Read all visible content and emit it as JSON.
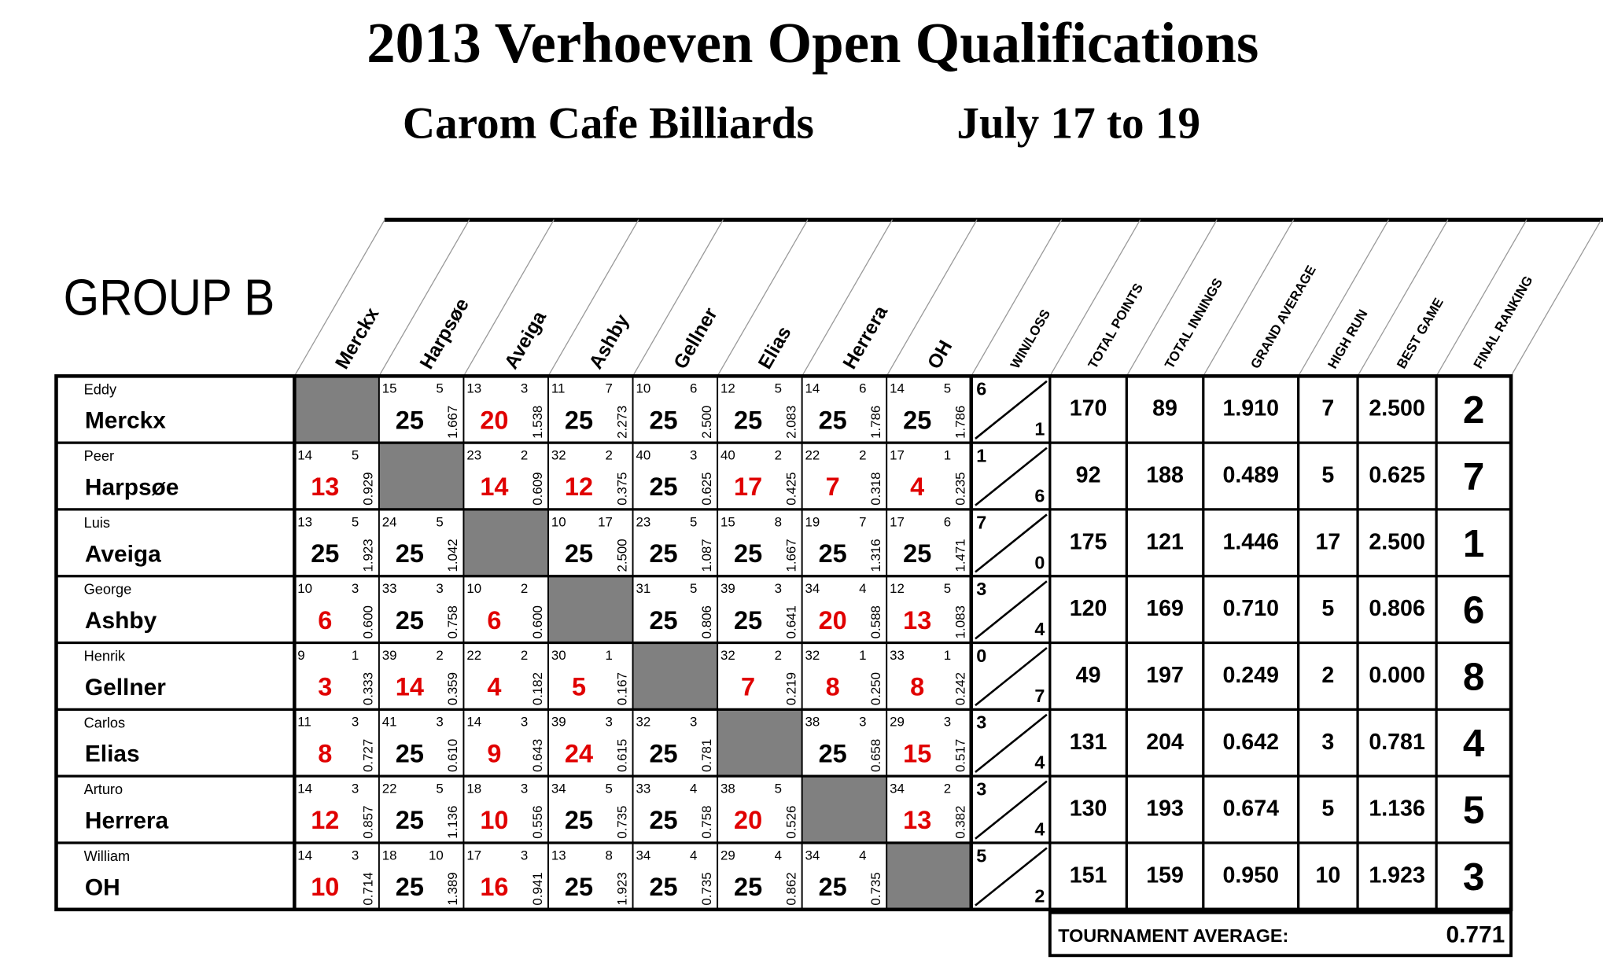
{
  "header": {
    "title": "2013 Verhoeven Open Qualifications",
    "venue": "Carom Cafe Billiards",
    "dates": "July 17 to 19"
  },
  "group": "GROUP B",
  "table": {
    "player_columns": [
      "Merckx",
      "Harpsøe",
      "Aveiga",
      "Ashby",
      "Gellner",
      "Elias",
      "Herrera",
      "OH"
    ],
    "stat_columns": [
      "WIN/LOSS",
      "TOTAL POINTS",
      "TOTAL INNINGS",
      "GRAND AVERAGE",
      "HIGH RUN",
      "BEST GAME",
      "FINAL RANKING"
    ],
    "rows": [
      {
        "first_name": "Eddy",
        "last_name": "Merckx",
        "games": [
          null,
          {
            "innings": "15",
            "high_run": "5",
            "score": "25",
            "average": "1.667"
          },
          {
            "innings": "13",
            "high_run": "3",
            "score": "20",
            "average": "1.538"
          },
          {
            "innings": "11",
            "high_run": "7",
            "score": "25",
            "average": "2.273"
          },
          {
            "innings": "10",
            "high_run": "6",
            "score": "25",
            "average": "2.500"
          },
          {
            "innings": "12",
            "high_run": "5",
            "score": "25",
            "average": "2.083"
          },
          {
            "innings": "14",
            "high_run": "6",
            "score": "25",
            "average": "1.786"
          },
          {
            "innings": "14",
            "high_run": "5",
            "score": "25",
            "average": "1.786"
          }
        ],
        "wins": "6",
        "losses": "1",
        "total_points": "170",
        "total_innings": "89",
        "grand_average": "1.910",
        "high_run": "7",
        "best_game": "2.500",
        "final_ranking": "2"
      },
      {
        "first_name": "Peer",
        "last_name": "Harpsøe",
        "games": [
          {
            "innings": "14",
            "high_run": "5",
            "score": "13",
            "average": "0.929"
          },
          null,
          {
            "innings": "23",
            "high_run": "2",
            "score": "14",
            "average": "0.609"
          },
          {
            "innings": "32",
            "high_run": "2",
            "score": "12",
            "average": "0.375"
          },
          {
            "innings": "40",
            "high_run": "3",
            "score": "25",
            "average": "0.625"
          },
          {
            "innings": "40",
            "high_run": "2",
            "score": "17",
            "average": "0.425"
          },
          {
            "innings": "22",
            "high_run": "2",
            "score": "7",
            "average": "0.318"
          },
          {
            "innings": "17",
            "high_run": "1",
            "score": "4",
            "average": "0.235"
          }
        ],
        "wins": "1",
        "losses": "6",
        "total_points": "92",
        "total_innings": "188",
        "grand_average": "0.489",
        "high_run": "5",
        "best_game": "0.625",
        "final_ranking": "7"
      },
      {
        "first_name": "Luis",
        "last_name": "Aveiga",
        "games": [
          {
            "innings": "13",
            "high_run": "5",
            "score": "25",
            "average": "1.923"
          },
          {
            "innings": "24",
            "high_run": "5",
            "score": "25",
            "average": "1.042"
          },
          null,
          {
            "innings": "10",
            "high_run": "17",
            "score": "25",
            "average": "2.500"
          },
          {
            "innings": "23",
            "high_run": "5",
            "score": "25",
            "average": "1.087"
          },
          {
            "innings": "15",
            "high_run": "8",
            "score": "25",
            "average": "1.667"
          },
          {
            "innings": "19",
            "high_run": "7",
            "score": "25",
            "average": "1.316"
          },
          {
            "innings": "17",
            "high_run": "6",
            "score": "25",
            "average": "1.471"
          }
        ],
        "wins": "7",
        "losses": "0",
        "total_points": "175",
        "total_innings": "121",
        "grand_average": "1.446",
        "high_run": "17",
        "best_game": "2.500",
        "final_ranking": "1"
      },
      {
        "first_name": "George",
        "last_name": "Ashby",
        "games": [
          {
            "innings": "10",
            "high_run": "3",
            "score": "6",
            "average": "0.600"
          },
          {
            "innings": "33",
            "high_run": "3",
            "score": "25",
            "average": "0.758"
          },
          {
            "innings": "10",
            "high_run": "2",
            "score": "6",
            "average": "0.600"
          },
          null,
          {
            "innings": "31",
            "high_run": "5",
            "score": "25",
            "average": "0.806"
          },
          {
            "innings": "39",
            "high_run": "3",
            "score": "25",
            "average": "0.641"
          },
          {
            "innings": "34",
            "high_run": "4",
            "score": "20",
            "average": "0.588"
          },
          {
            "innings": "12",
            "high_run": "5",
            "score": "13",
            "average": "1.083"
          }
        ],
        "wins": "3",
        "losses": "4",
        "total_points": "120",
        "total_innings": "169",
        "grand_average": "0.710",
        "high_run": "5",
        "best_game": "0.806",
        "final_ranking": "6"
      },
      {
        "first_name": "Henrik",
        "last_name": "Gellner",
        "games": [
          {
            "innings": "9",
            "high_run": "1",
            "score": "3",
            "average": "0.333"
          },
          {
            "innings": "39",
            "high_run": "2",
            "score": "14",
            "average": "0.359"
          },
          {
            "innings": "22",
            "high_run": "2",
            "score": "4",
            "average": "0.182"
          },
          {
            "innings": "30",
            "high_run": "1",
            "score": "5",
            "average": "0.167"
          },
          null,
          {
            "innings": "32",
            "high_run": "2",
            "score": "7",
            "average": "0.219"
          },
          {
            "innings": "32",
            "high_run": "1",
            "score": "8",
            "average": "0.250"
          },
          {
            "innings": "33",
            "high_run": "1",
            "score": "8",
            "average": "0.242"
          }
        ],
        "wins": "0",
        "losses": "7",
        "total_points": "49",
        "total_innings": "197",
        "grand_average": "0.249",
        "high_run": "2",
        "best_game": "0.000",
        "final_ranking": "8"
      },
      {
        "first_name": "Carlos",
        "last_name": "Elias",
        "games": [
          {
            "innings": "11",
            "high_run": "3",
            "score": "8",
            "average": "0.727"
          },
          {
            "innings": "41",
            "high_run": "3",
            "score": "25",
            "average": "0.610"
          },
          {
            "innings": "14",
            "high_run": "3",
            "score": "9",
            "average": "0.643"
          },
          {
            "innings": "39",
            "high_run": "3",
            "score": "24",
            "average": "0.615"
          },
          {
            "innings": "32",
            "high_run": "3",
            "score": "25",
            "average": "0.781"
          },
          null,
          {
            "innings": "38",
            "high_run": "3",
            "score": "25",
            "average": "0.658"
          },
          {
            "innings": "29",
            "high_run": "3",
            "score": "15",
            "average": "0.517"
          }
        ],
        "wins": "3",
        "losses": "4",
        "total_points": "131",
        "total_innings": "204",
        "grand_average": "0.642",
        "high_run": "3",
        "best_game": "0.781",
        "final_ranking": "4"
      },
      {
        "first_name": "Arturo",
        "last_name": "Herrera",
        "games": [
          {
            "innings": "14",
            "high_run": "3",
            "score": "12",
            "average": "0.857"
          },
          {
            "innings": "22",
            "high_run": "5",
            "score": "25",
            "average": "1.136"
          },
          {
            "innings": "18",
            "high_run": "3",
            "score": "10",
            "average": "0.556"
          },
          {
            "innings": "34",
            "high_run": "5",
            "score": "25",
            "average": "0.735"
          },
          {
            "innings": "33",
            "high_run": "4",
            "score": "25",
            "average": "0.758"
          },
          {
            "innings": "38",
            "high_run": "5",
            "score": "20",
            "average": "0.526"
          },
          null,
          {
            "innings": "34",
            "high_run": "2",
            "score": "13",
            "average": "0.382"
          }
        ],
        "wins": "3",
        "losses": "4",
        "total_points": "130",
        "total_innings": "193",
        "grand_average": "0.674",
        "high_run": "5",
        "best_game": "1.136",
        "final_ranking": "5"
      },
      {
        "first_name": "William",
        "last_name": "OH",
        "games": [
          {
            "innings": "14",
            "high_run": "3",
            "score": "10",
            "average": "0.714"
          },
          {
            "innings": "18",
            "high_run": "10",
            "score": "25",
            "average": "1.389"
          },
          {
            "innings": "17",
            "high_run": "3",
            "score": "16",
            "average": "0.941"
          },
          {
            "innings": "13",
            "high_run": "8",
            "score": "25",
            "average": "1.923"
          },
          {
            "innings": "34",
            "high_run": "4",
            "score": "25",
            "average": "0.735"
          },
          {
            "innings": "29",
            "high_run": "4",
            "score": "25",
            "average": "0.862"
          },
          {
            "innings": "34",
            "high_run": "4",
            "score": "25",
            "average": "0.735"
          },
          null
        ],
        "wins": "5",
        "losses": "2",
        "total_points": "151",
        "total_innings": "159",
        "grand_average": "0.950",
        "high_run": "10",
        "best_game": "1.923",
        "final_ranking": "3"
      }
    ]
  },
  "tournament_average": {
    "label": "TOURNAMENT AVERAGE:",
    "value": "0.771"
  }
}
